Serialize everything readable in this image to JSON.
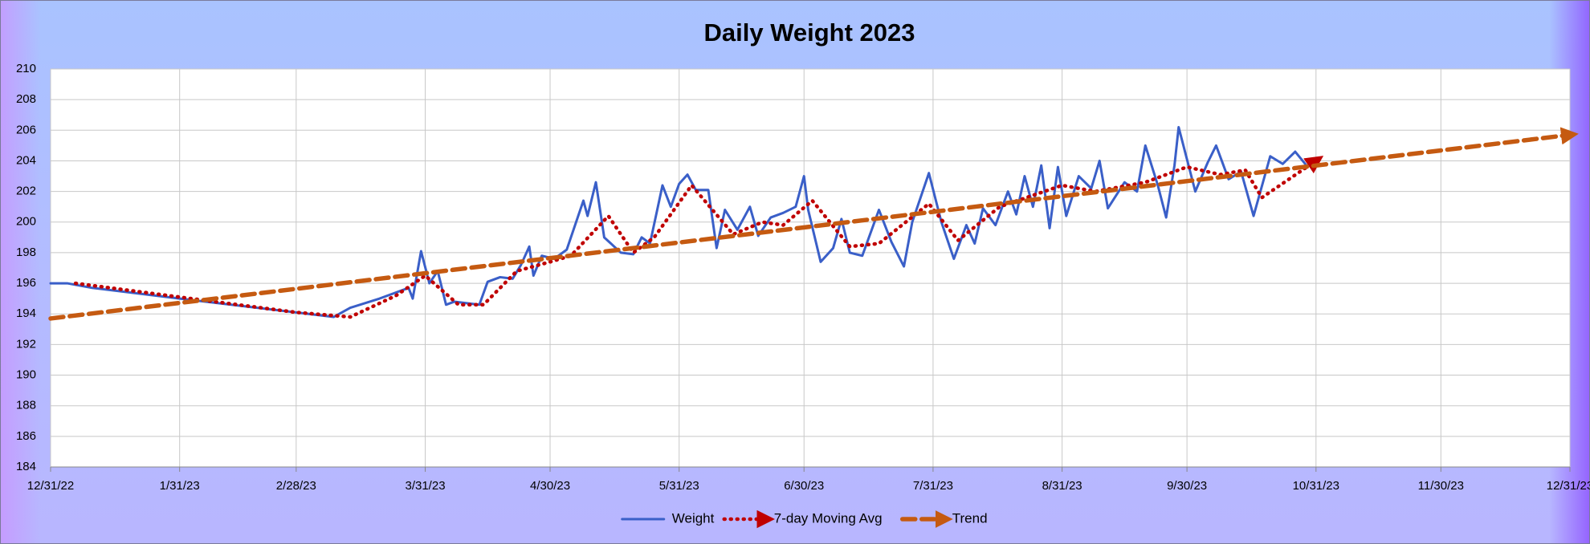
{
  "chart_data": {
    "type": "line",
    "title": "Daily Weight 2023",
    "xlim": [
      "12/31/22",
      "12/31/23"
    ],
    "xticks": [
      "12/31/22",
      "1/31/23",
      "2/28/23",
      "3/31/23",
      "4/30/23",
      "5/31/23",
      "6/30/23",
      "7/31/23",
      "8/31/23",
      "9/30/23",
      "10/31/23",
      "11/30/23",
      "12/31/23"
    ],
    "ylim": [
      184,
      210
    ],
    "yticks": [
      184,
      186,
      188,
      190,
      192,
      194,
      196,
      198,
      200,
      202,
      204,
      206,
      208,
      210
    ],
    "grid": true,
    "legend": "bottom",
    "series": [
      {
        "name": "Weight",
        "color": "#3a5fc8",
        "style": "solid",
        "arrow": false,
        "x": [
          "12/31/22",
          "1/4/23",
          "1/10/23",
          "1/31/23",
          "2/28/23",
          "3/9/23",
          "3/13/23",
          "3/20/23",
          "3/27/23",
          "3/28/23",
          "3/30/23",
          "4/1/23",
          "4/3/23",
          "4/5/23",
          "4/7/23",
          "4/13/23",
          "4/15/23",
          "4/18/23",
          "4/21/23",
          "4/23/23",
          "4/25/23",
          "4/26/23",
          "4/28/23",
          "5/1/23",
          "5/4/23",
          "5/8/23",
          "5/9/23",
          "5/11/23",
          "5/13/23",
          "5/17/23",
          "5/20/23",
          "5/22/23",
          "5/24/23",
          "5/27/23",
          "5/29/23",
          "5/31/23",
          "6/2/23",
          "6/4/23",
          "6/7/23",
          "6/9/23",
          "6/11/23",
          "6/14/23",
          "6/17/23",
          "6/19/23",
          "6/22/23",
          "6/25/23",
          "6/28/23",
          "6/30/23",
          "7/1/23",
          "7/4/23",
          "7/7/23",
          "7/9/23",
          "7/11/23",
          "7/14/23",
          "7/18/23",
          "7/21/23",
          "7/24/23",
          "7/26/23",
          "7/30/23",
          "8/2/23",
          "8/5/23",
          "8/8/23",
          "8/10/23",
          "8/12/23",
          "8/15/23",
          "8/18/23",
          "8/20/23",
          "8/22/23",
          "8/24/23",
          "8/26/23",
          "8/28/23",
          "8/30/23",
          "9/1/23",
          "9/4/23",
          "9/7/23",
          "9/9/23",
          "9/11/23",
          "9/15/23",
          "9/18/23",
          "9/20/23",
          "9/23/23",
          "9/25/23",
          "9/27/23",
          "9/28/23",
          "10/2/23",
          "10/5/23",
          "10/7/23",
          "10/10/23",
          "10/13/23",
          "10/16/23",
          "10/20/23",
          "10/23/23",
          "10/26/23",
          "10/29/23"
        ],
        "values": [
          196,
          196,
          195.7,
          195,
          194.1,
          193.8,
          194.4,
          195,
          195.7,
          195,
          198.1,
          196,
          196.8,
          194.6,
          194.8,
          194.6,
          196.1,
          196.4,
          196.3,
          197.2,
          198.4,
          196.5,
          197.8,
          197.6,
          198.2,
          201.4,
          200.4,
          202.6,
          199,
          198,
          197.9,
          199,
          198.6,
          202.4,
          201,
          202.5,
          203.1,
          202.1,
          202.1,
          198.3,
          200.8,
          199.5,
          201,
          199.1,
          200.3,
          200.6,
          201,
          203,
          200.8,
          197.4,
          198.3,
          200.2,
          198,
          197.8,
          200.8,
          198.7,
          197.1,
          200,
          203.2,
          200,
          197.6,
          199.8,
          198.6,
          200.9,
          199.8,
          202,
          200.5,
          203,
          201,
          203.7,
          199.6,
          203.6,
          200.4,
          203,
          202.2,
          204,
          200.9,
          202.6,
          202,
          205,
          202.4,
          200.3,
          203.7,
          206.2,
          202,
          203.9,
          205,
          202.8,
          203.3,
          200.4,
          204.3,
          203.8,
          204.6,
          203.6
        ]
      },
      {
        "name": "7-day Moving Avg",
        "color": "#c00000",
        "style": "dotted",
        "arrow": true,
        "x": [
          "1/6/23",
          "1/31/23",
          "2/28/23",
          "3/13/23",
          "3/24/23",
          "3/31/23",
          "4/8/23",
          "4/14/23",
          "4/22/23",
          "4/30/23",
          "5/5/23",
          "5/14/23",
          "5/20/23",
          "5/25/23",
          "6/3/23",
          "6/13/23",
          "6/20/23",
          "6/25/23",
          "7/2/23",
          "7/11/23",
          "7/18/23",
          "7/30/23",
          "8/6/23",
          "8/16/23",
          "8/31/23",
          "9/8/23",
          "9/20/23",
          "9/30/23",
          "10/8/23",
          "10/14/23",
          "10/18/23",
          "10/31/23"
        ],
        "values": [
          196,
          195.1,
          194.1,
          193.8,
          195.2,
          196.5,
          194.6,
          194.6,
          196.8,
          197.4,
          197.8,
          200.4,
          198,
          199,
          202.4,
          199.2,
          200,
          199.8,
          201.4,
          198.4,
          198.6,
          201.2,
          198.8,
          201,
          202.4,
          202,
          202.6,
          203.6,
          203.1,
          203.4,
          201.6,
          204
        ]
      },
      {
        "name": "Trend",
        "color": "#c55a11",
        "style": "dashed",
        "arrow": true,
        "x": [
          "12/31/22",
          "12/31/23"
        ],
        "values": [
          193.7,
          205.7
        ]
      }
    ]
  }
}
